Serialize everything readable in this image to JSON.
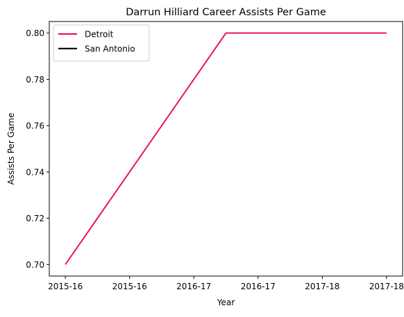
{
  "chart_data": {
    "type": "line",
    "title": "Darrun Hilliard Career Assists Per Game",
    "xlabel": "Year",
    "ylabel": "Assists Per Game",
    "x_tick_labels": [
      "2015-16",
      "2015-16",
      "2016-17",
      "2016-17",
      "2017-18",
      "2017-18"
    ],
    "x_range": [
      -0.1,
      2.1
    ],
    "ylim": [
      0.695,
      0.805
    ],
    "y_ticks": [
      0.7,
      0.72,
      0.74,
      0.76,
      0.78,
      0.8
    ],
    "y_tick_labels": [
      "0.70",
      "0.72",
      "0.74",
      "0.76",
      "0.78",
      "0.80"
    ],
    "grid": false,
    "legend_position": "top-left",
    "series": [
      {
        "name": "Detroit",
        "color": "#e8174f",
        "points": [
          {
            "x": 0,
            "y": 0.7
          },
          {
            "x": 1,
            "y": 0.8
          },
          {
            "x": 2,
            "y": 0.8
          }
        ]
      },
      {
        "name": "San Antonio",
        "color": "#000000",
        "points": []
      }
    ]
  }
}
